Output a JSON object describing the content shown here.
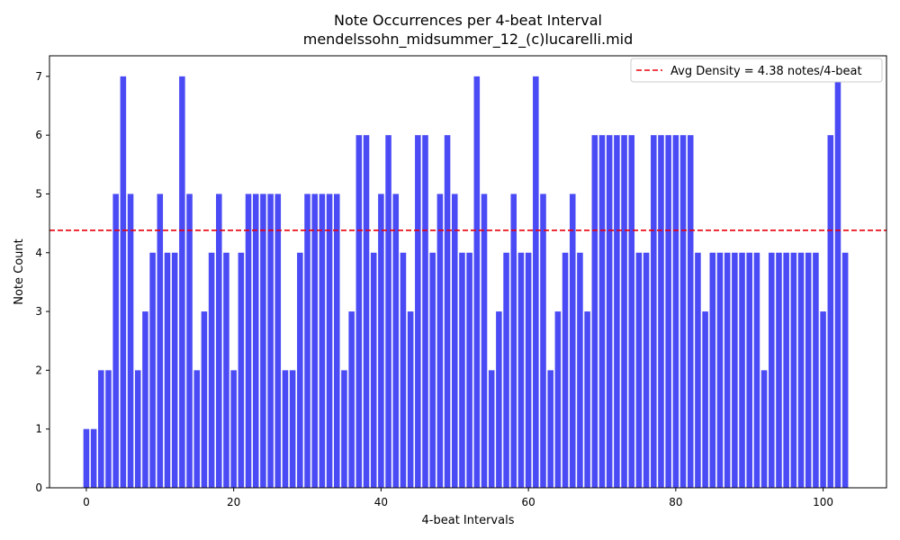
{
  "chart_data": {
    "type": "bar",
    "title": "Note Occurrences per 4-beat Interval",
    "subtitle": "mendelssohn_midsummer_12_(c)lucarelli.mid",
    "xlabel": "4-beat Intervals",
    "ylabel": "Note Count",
    "xlim": [
      -5,
      108.6
    ],
    "ylim": [
      0,
      7.35
    ],
    "xticks": [
      0,
      20,
      40,
      60,
      80,
      100
    ],
    "yticks": [
      0,
      1,
      2,
      3,
      4,
      5,
      6,
      7
    ],
    "x": [
      0,
      1,
      2,
      3,
      4,
      5,
      6,
      7,
      8,
      9,
      10,
      11,
      12,
      13,
      14,
      15,
      16,
      17,
      18,
      19,
      20,
      21,
      22,
      23,
      24,
      25,
      26,
      27,
      28,
      29,
      30,
      31,
      32,
      33,
      34,
      35,
      36,
      37,
      38,
      39,
      40,
      41,
      42,
      43,
      44,
      45,
      46,
      47,
      48,
      49,
      50,
      51,
      52,
      53,
      54,
      55,
      56,
      57,
      58,
      59,
      60,
      61,
      62,
      63,
      64,
      65,
      66,
      67,
      68,
      69,
      70,
      71,
      72,
      73,
      74,
      75,
      76,
      77,
      78,
      79,
      80,
      81,
      82,
      83,
      84,
      85,
      86,
      87,
      88,
      89,
      90,
      91,
      92,
      93,
      94,
      95,
      96,
      97,
      98,
      99,
      100,
      101,
      102,
      103
    ],
    "values": [
      1,
      1,
      2,
      2,
      5,
      7,
      5,
      2,
      3,
      4,
      5,
      4,
      4,
      7,
      5,
      2,
      3,
      4,
      5,
      4,
      2,
      4,
      5,
      5,
      5,
      5,
      5,
      2,
      2,
      4,
      5,
      5,
      5,
      5,
      5,
      2,
      3,
      6,
      6,
      4,
      5,
      6,
      5,
      4,
      3,
      6,
      6,
      4,
      5,
      6,
      5,
      4,
      4,
      7,
      5,
      2,
      3,
      4,
      5,
      4,
      4,
      7,
      5,
      2,
      3,
      4,
      5,
      4,
      3,
      6,
      6,
      6,
      6,
      6,
      6,
      4,
      4,
      6,
      6,
      6,
      6,
      6,
      6,
      4,
      3,
      4,
      4,
      4,
      4,
      4,
      4,
      4,
      2,
      4,
      4,
      4,
      4,
      4,
      4,
      4,
      3,
      6,
      7,
      4
    ],
    "bar_color": "#4b4bf5",
    "avg_line": {
      "value": 4.38,
      "color": "#e8000b",
      "style": "dashed"
    },
    "legend": {
      "position": "top-right",
      "entries": [
        "Avg Density = 4.38 notes/4-beat"
      ]
    },
    "grid": false
  }
}
